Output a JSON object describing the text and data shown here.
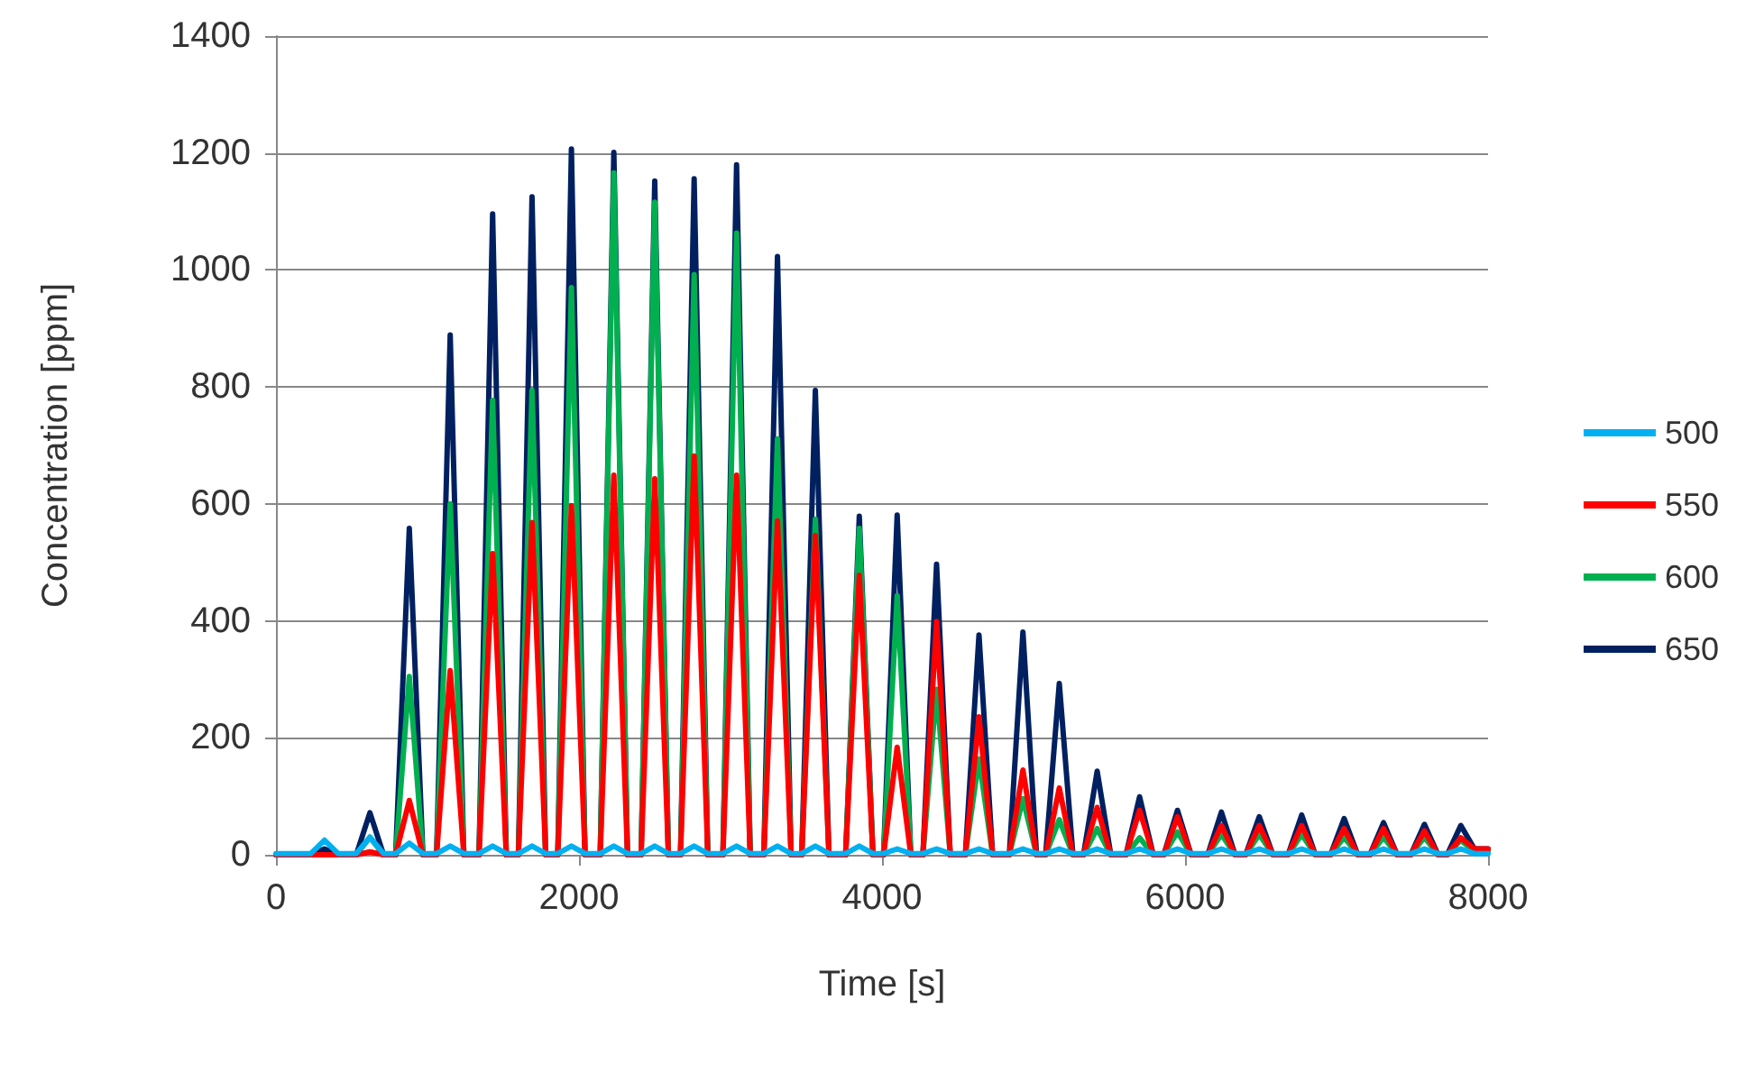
{
  "chart_data": {
    "type": "line",
    "xlabel": "Time [s]",
    "ylabel": "Concentration [ppm]",
    "x": [
      0,
      230,
      320,
      410,
      530,
      620,
      710,
      790,
      880,
      970,
      1060,
      1150,
      1240,
      1340,
      1430,
      1520,
      1600,
      1690,
      1780,
      1860,
      1950,
      2040,
      2140,
      2230,
      2320,
      2410,
      2500,
      2590,
      2670,
      2760,
      2850,
      2950,
      3040,
      3130,
      3220,
      3310,
      3400,
      3470,
      3560,
      3650,
      3760,
      3850,
      3940,
      4010,
      4100,
      4190,
      4270,
      4360,
      4450,
      4550,
      4640,
      4730,
      4840,
      4930,
      5020,
      5080,
      5170,
      5260,
      5330,
      5420,
      5510,
      5610,
      5700,
      5790,
      5860,
      5950,
      6040,
      6150,
      6240,
      6330,
      6400,
      6490,
      6580,
      6680,
      6770,
      6860,
      6960,
      7050,
      7140,
      7220,
      7310,
      7400,
      7490,
      7580,
      7670,
      7730,
      7820,
      7910,
      8000
    ],
    "series": [
      {
        "name": "500",
        "color": "#00b0f0",
        "values": [
          2,
          2,
          25,
          2,
          2,
          30,
          2,
          2,
          20,
          2,
          2,
          15,
          2,
          2,
          15,
          2,
          2,
          15,
          2,
          2,
          15,
          2,
          2,
          15,
          2,
          2,
          15,
          2,
          2,
          15,
          2,
          2,
          15,
          2,
          2,
          15,
          2,
          2,
          15,
          2,
          2,
          15,
          2,
          2,
          10,
          2,
          2,
          10,
          2,
          2,
          10,
          2,
          2,
          10,
          2,
          2,
          10,
          2,
          2,
          10,
          2,
          2,
          10,
          2,
          2,
          10,
          2,
          2,
          10,
          2,
          2,
          10,
          2,
          2,
          10,
          2,
          2,
          10,
          2,
          2,
          10,
          2,
          2,
          10,
          2,
          2,
          10,
          2,
          2
        ]
      },
      {
        "name": "550",
        "color": "#ff0000",
        "values": [
          0,
          0,
          0,
          0,
          0,
          5,
          0,
          0,
          93,
          0,
          0,
          315,
          0,
          0,
          515,
          0,
          0,
          568,
          0,
          0,
          597,
          0,
          0,
          649,
          0,
          0,
          643,
          0,
          0,
          682,
          0,
          0,
          649,
          0,
          0,
          571,
          0,
          0,
          546,
          0,
          0,
          478,
          0,
          0,
          184,
          0,
          0,
          399,
          0,
          0,
          236,
          0,
          0,
          145,
          0,
          0,
          114,
          0,
          0,
          81,
          0,
          0,
          76,
          0,
          0,
          65,
          0,
          0,
          50,
          0,
          0,
          50,
          0,
          0,
          50,
          0,
          0,
          45,
          0,
          0,
          45,
          0,
          0,
          41,
          0,
          0,
          29,
          10,
          10
        ]
      },
      {
        "name": "600",
        "color": "#00b050",
        "values": [
          null,
          null,
          null,
          0,
          0,
          30,
          0,
          0,
          305,
          0,
          0,
          600,
          0,
          0,
          777,
          0,
          0,
          794,
          0,
          0,
          970,
          0,
          0,
          1166,
          0,
          0,
          1116,
          0,
          0,
          992,
          0,
          0,
          1063,
          0,
          0,
          711,
          0,
          0,
          574,
          0,
          0,
          558,
          0,
          0,
          443,
          0,
          0,
          283,
          0,
          0,
          164,
          0,
          0,
          96,
          0,
          0,
          60,
          0,
          0,
          45,
          0,
          0,
          29,
          0,
          0,
          39,
          0,
          0,
          35,
          0,
          0,
          35,
          0,
          0,
          35,
          0,
          0,
          30,
          0,
          0,
          30,
          0,
          0,
          30,
          0,
          0,
          25,
          5,
          5
        ]
      },
      {
        "name": "650",
        "color": "#002060",
        "values": [
          0,
          0,
          10,
          0,
          0,
          72,
          0,
          0,
          558,
          0,
          0,
          889,
          0,
          0,
          1096,
          0,
          0,
          1125,
          0,
          0,
          1207,
          0,
          0,
          1201,
          0,
          0,
          1152,
          0,
          0,
          1156,
          0,
          0,
          1180,
          0,
          0,
          1023,
          0,
          0,
          794,
          0,
          0,
          579,
          0,
          0,
          581,
          0,
          0,
          497,
          0,
          0,
          376,
          0,
          0,
          381,
          0,
          0,
          293,
          0,
          0,
          143,
          0,
          0,
          99,
          0,
          0,
          76,
          0,
          0,
          73,
          0,
          0,
          65,
          0,
          0,
          68,
          0,
          0,
          62,
          0,
          0,
          55,
          0,
          0,
          52,
          0,
          0,
          50,
          10,
          10
        ]
      }
    ],
    "xlim": [
      0,
      8000
    ],
    "xticks": [
      0,
      2000,
      4000,
      6000,
      8000
    ],
    "ylim": [
      0,
      1400
    ],
    "yticks": [
      0,
      200,
      400,
      600,
      800,
      1000,
      1200,
      1400
    ],
    "grid": "y",
    "legend": "right",
    "marker": "none",
    "line_style": "solid"
  }
}
